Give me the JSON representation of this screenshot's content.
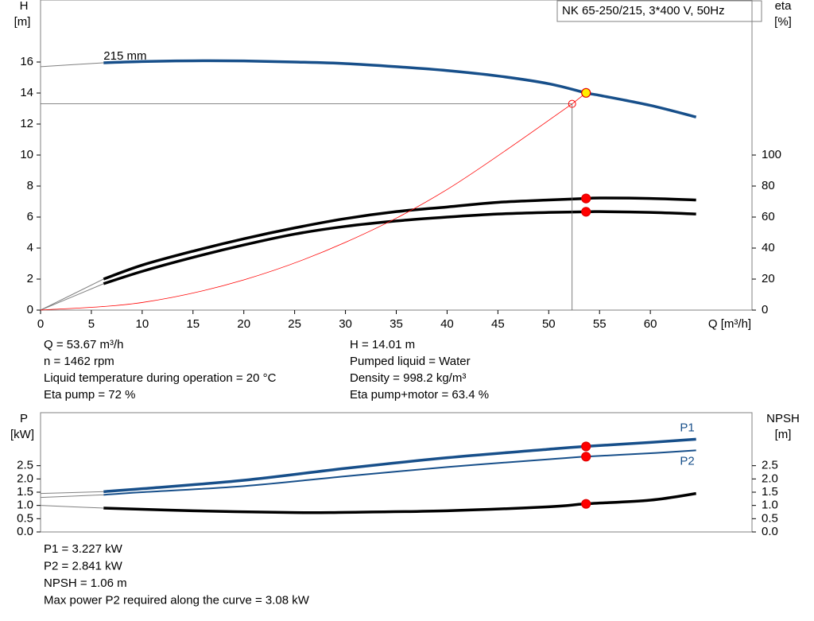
{
  "title_box": "NK 65-250/215, 3*400 V, 50Hz",
  "chart_data": [
    {
      "type": "line",
      "y_title": [
        "H",
        "[m]"
      ],
      "y2_title": [
        "eta",
        "[%]"
      ],
      "x_title": "Q [m³/h]",
      "xlim": [
        0,
        70
      ],
      "xticks": [
        0,
        5,
        10,
        15,
        20,
        25,
        30,
        35,
        40,
        45,
        50,
        55,
        60
      ],
      "ylim": [
        0,
        20
      ],
      "yticks": [
        0,
        2,
        4,
        6,
        8,
        10,
        12,
        14,
        16
      ],
      "y2lim": [
        0,
        200
      ],
      "y2ticks": [
        0,
        20,
        40,
        60,
        80,
        100
      ],
      "operating_q": 53.67,
      "series": [
        {
          "name": "215 mm",
          "color": "#174f8a",
          "style": "thick",
          "marker_color": "#ffee00",
          "x": [
            6.2,
            10,
            15,
            20,
            25,
            30,
            35,
            40,
            45,
            50,
            53.67,
            55,
            60,
            64.5
          ],
          "values": [
            15.95,
            16.03,
            16.08,
            16.07,
            16.0,
            15.9,
            15.7,
            15.45,
            15.1,
            14.6,
            14.01,
            13.85,
            13.2,
            12.45
          ]
        },
        {
          "color": "#808080",
          "style": "thin",
          "x": [
            0,
            6.2
          ],
          "values": [
            15.7,
            15.95
          ]
        },
        {
          "color": "#000000",
          "style": "thick",
          "axis": "y2",
          "marker_color": "#ff0000",
          "x": [
            6.2,
            10,
            15,
            20,
            25,
            30,
            35,
            40,
            45,
            50,
            53.67,
            55,
            60,
            64.5
          ],
          "values": [
            20,
            29,
            38,
            46,
            53,
            59,
            63.5,
            66.5,
            69.5,
            71,
            72,
            72.3,
            72,
            71
          ]
        },
        {
          "color": "#000000",
          "style": "thick",
          "axis": "y2",
          "marker_color": "#ff0000",
          "x": [
            6.2,
            10,
            15,
            20,
            25,
            30,
            35,
            40,
            45,
            50,
            53.67,
            55,
            60,
            64.5
          ],
          "values": [
            17,
            25,
            34,
            42,
            49,
            54,
            57.5,
            60,
            62,
            63,
            63.4,
            63.5,
            63,
            62
          ]
        },
        {
          "color": "#808080",
          "style": "thin",
          "axis": "y2",
          "x": [
            0,
            6.2
          ],
          "values": [
            0,
            20
          ]
        },
        {
          "color": "#808080",
          "style": "thin",
          "axis": "y2",
          "x": [
            0,
            6.2
          ],
          "values": [
            0,
            17
          ]
        },
        {
          "color": "#ff0000",
          "style": "system",
          "x": [
            0,
            10,
            20,
            30,
            40,
            52.3
          ],
          "values": [
            0,
            0.49,
            1.95,
            4.37,
            7.78,
            13.3
          ]
        }
      ],
      "annotations": [
        [
          "Q = 53.67 m³/h",
          "n = 1462 rpm",
          "Liquid temperature during operation = 20 °C",
          "Eta pump = 72 %"
        ],
        [
          "H = 14.01 m",
          "Pumped liquid = Water",
          "Density = 998.2 kg/m³",
          "Eta pump+motor = 63.4 %"
        ]
      ]
    },
    {
      "type": "line",
      "y_title": [
        "P",
        "[kW]"
      ],
      "y2_title": [
        "NPSH",
        "[m]"
      ],
      "xlim": [
        0,
        70
      ],
      "ylim": [
        0,
        4.5
      ],
      "yticks": [
        {
          "value": 0,
          "label": "0.0"
        },
        0.5,
        {
          "value": 1,
          "label": "1.0"
        },
        1.5,
        {
          "value": 2,
          "label": "2.0"
        },
        2.5
      ],
      "y2lim": [
        0,
        4.5
      ],
      "y2ticks": [
        {
          "value": 0,
          "label": "0.0"
        },
        0.5,
        {
          "value": 1,
          "label": "1.0"
        },
        1.5,
        {
          "value": 2,
          "label": "2.0"
        },
        2.5
      ],
      "operating_q": 53.67,
      "series": [
        {
          "name": "P1",
          "color": "#174f8a",
          "style": "thick",
          "marker_color": "#ff0000",
          "x": [
            6.2,
            10,
            20,
            30,
            40,
            50,
            53.67,
            60,
            64.5
          ],
          "values": [
            1.52,
            1.63,
            1.95,
            2.4,
            2.8,
            3.12,
            3.227,
            3.38,
            3.5
          ]
        },
        {
          "name": "P2",
          "color": "#174f8a",
          "style": "medium",
          "marker_color": "#ff0000",
          "x": [
            6.2,
            10,
            20,
            30,
            40,
            50,
            53.67,
            60,
            64.5
          ],
          "values": [
            1.4,
            1.5,
            1.73,
            2.1,
            2.45,
            2.74,
            2.841,
            2.97,
            3.08
          ]
        },
        {
          "color": "#000000",
          "style": "thick",
          "axis": "y2",
          "marker_color": "#ff0000",
          "x": [
            6.2,
            15,
            25,
            30,
            40,
            50,
            53.67,
            60,
            64.5
          ],
          "values": [
            0.9,
            0.8,
            0.73,
            0.74,
            0.8,
            0.95,
            1.06,
            1.2,
            1.45
          ]
        },
        {
          "color": "#808080",
          "style": "thin",
          "x": [
            0,
            6.2
          ],
          "values": [
            1.45,
            1.52
          ]
        },
        {
          "color": "#808080",
          "style": "thin",
          "x": [
            0,
            6.2
          ],
          "values": [
            1.3,
            1.4
          ]
        },
        {
          "color": "#808080",
          "style": "thin",
          "axis": "y2",
          "x": [
            0,
            6.2
          ],
          "values": [
            1.0,
            0.9
          ]
        }
      ],
      "annotations": [
        [
          "P1 = 3.227 kW",
          "P2 = 2.841 kW",
          "NPSH = 1.06 m",
          "Max power P2 required along the curve = 3.08 kW"
        ]
      ]
    }
  ]
}
